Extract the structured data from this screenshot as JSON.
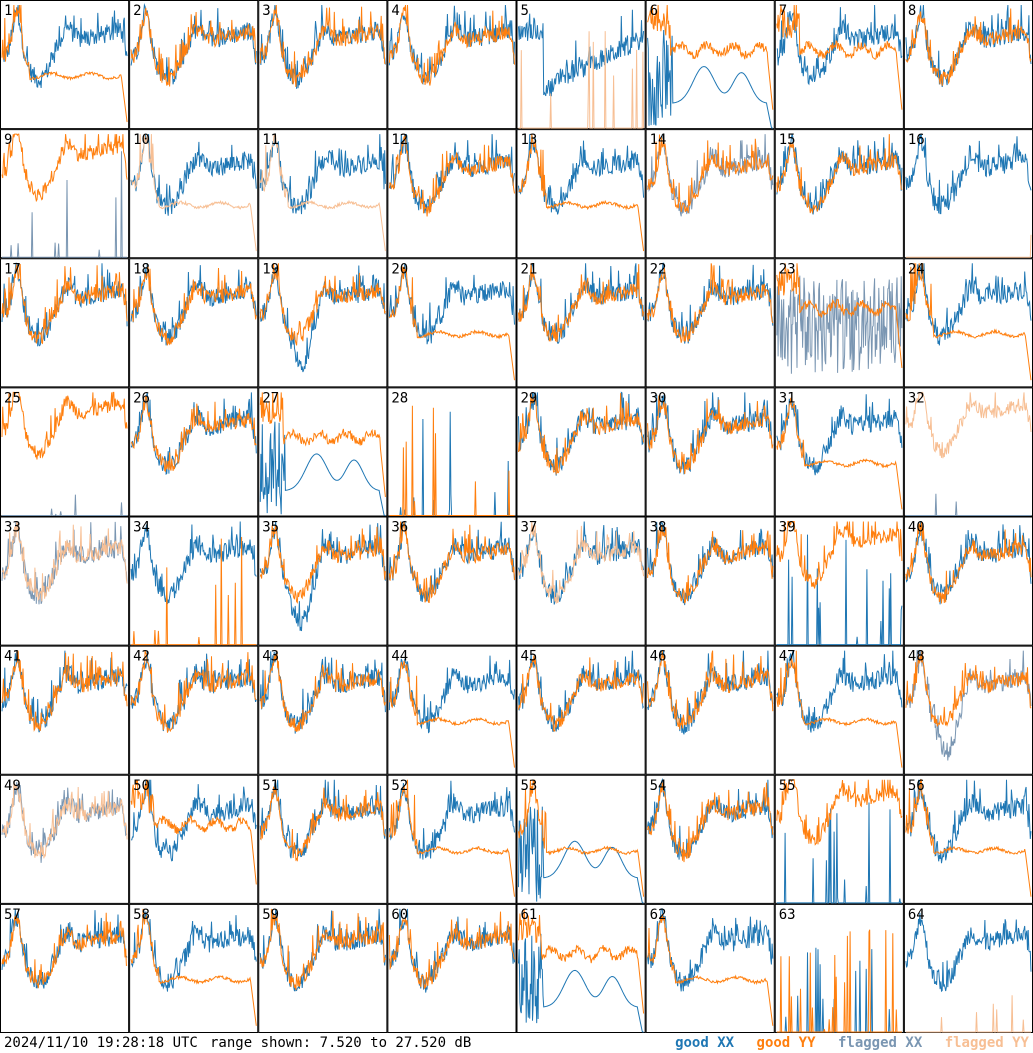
{
  "timestamp": "2024/11/10 19:28:18 UTC",
  "range_text": "range shown: 7.520 to 27.520 dB",
  "legend": [
    {
      "key": "good_xx",
      "label": "good XX",
      "color": "#1f77b4"
    },
    {
      "key": "good_yy",
      "label": "good YY",
      "color": "#ff7f0e"
    },
    {
      "key": "flagged_xx",
      "label": "flagged XX",
      "color": "#7a96b2"
    },
    {
      "key": "flagged_yy",
      "label": "flagged YY",
      "color": "#f7bf94"
    }
  ],
  "chart_data": {
    "type": "line",
    "grid": {
      "rows": 8,
      "cols": 8
    },
    "ylim": [
      7.52,
      27.52
    ],
    "y_unit": "dB",
    "panels": [
      {
        "id": 1,
        "xx": "good",
        "yy": "good",
        "xx_shape": "normal",
        "yy_shape": "plateau"
      },
      {
        "id": 2,
        "xx": "good",
        "yy": "good",
        "xx_shape": "normal",
        "yy_shape": "normal"
      },
      {
        "id": 3,
        "xx": "good",
        "yy": "good",
        "xx_shape": "normal",
        "yy_shape": "normal"
      },
      {
        "id": 4,
        "xx": "good",
        "yy": "good",
        "xx_shape": "normal",
        "yy_shape": "normal"
      },
      {
        "id": 5,
        "xx": "good",
        "yy": "flagged",
        "xx_shape": "dip",
        "yy_shape": "spikes"
      },
      {
        "id": 6,
        "xx": "good",
        "yy": "good",
        "xx_shape": "hump",
        "yy_shape": "plateau_high"
      },
      {
        "id": 7,
        "xx": "good",
        "yy": "good",
        "xx_shape": "normal",
        "yy_shape": "plateau_high"
      },
      {
        "id": 8,
        "xx": "good",
        "yy": "good",
        "xx_shape": "normal",
        "yy_shape": "normal"
      },
      {
        "id": 9,
        "xx": "flagged",
        "yy": "good",
        "xx_shape": "spikes",
        "yy_shape": "normal_high"
      },
      {
        "id": 10,
        "xx": "good",
        "yy": "flagged",
        "xx_shape": "normal",
        "yy_shape": "plateau"
      },
      {
        "id": 11,
        "xx": "good",
        "yy": "flagged",
        "xx_shape": "normal",
        "yy_shape": "plateau"
      },
      {
        "id": 12,
        "xx": "good",
        "yy": "good",
        "xx_shape": "normal",
        "yy_shape": "normal"
      },
      {
        "id": 13,
        "xx": "good",
        "yy": "good",
        "xx_shape": "normal",
        "yy_shape": "plateau"
      },
      {
        "id": 14,
        "xx": "flagged",
        "yy": "good",
        "xx_shape": "normal",
        "yy_shape": "normal"
      },
      {
        "id": 15,
        "xx": "good",
        "yy": "good",
        "xx_shape": "normal",
        "yy_shape": "normal"
      },
      {
        "id": 16,
        "xx": "good",
        "yy": "flagged",
        "xx_shape": "normal",
        "yy_shape": "flat_low"
      },
      {
        "id": 17,
        "xx": "good",
        "yy": "good",
        "xx_shape": "normal",
        "yy_shape": "normal"
      },
      {
        "id": 18,
        "xx": "good",
        "yy": "good",
        "xx_shape": "normal",
        "yy_shape": "normal"
      },
      {
        "id": 19,
        "xx": "good",
        "yy": "good",
        "xx_shape": "deep",
        "yy_shape": "normal"
      },
      {
        "id": 20,
        "xx": "good",
        "yy": "good",
        "xx_shape": "normal",
        "yy_shape": "plateau"
      },
      {
        "id": 21,
        "xx": "good",
        "yy": "good",
        "xx_shape": "normal",
        "yy_shape": "normal"
      },
      {
        "id": 22,
        "xx": "good",
        "yy": "good",
        "xx_shape": "normal",
        "yy_shape": "normal"
      },
      {
        "id": 23,
        "xx": "flagged",
        "yy": "good",
        "xx_shape": "noise",
        "yy_shape": "plateau_high"
      },
      {
        "id": 24,
        "xx": "good",
        "yy": "good",
        "xx_shape": "normal",
        "yy_shape": "plateau"
      },
      {
        "id": 25,
        "xx": "flagged",
        "yy": "good",
        "xx_shape": "flat_low",
        "yy_shape": "normal_high"
      },
      {
        "id": 26,
        "xx": "good",
        "yy": "good",
        "xx_shape": "normal",
        "yy_shape": "normal"
      },
      {
        "id": 27,
        "xx": "good",
        "yy": "good",
        "xx_shape": "hump",
        "yy_shape": "plateau_high"
      },
      {
        "id": 28,
        "xx": "good",
        "yy": "good",
        "xx_shape": "spikes",
        "yy_shape": "spikes"
      },
      {
        "id": 29,
        "xx": "good",
        "yy": "good",
        "xx_shape": "normal",
        "yy_shape": "normal"
      },
      {
        "id": 30,
        "xx": "good",
        "yy": "good",
        "xx_shape": "normal",
        "yy_shape": "normal"
      },
      {
        "id": 31,
        "xx": "good",
        "yy": "good",
        "xx_shape": "normal",
        "yy_shape": "plateau"
      },
      {
        "id": 32,
        "xx": "flagged",
        "yy": "flagged",
        "xx_shape": "flat_low",
        "yy_shape": "normal_high"
      },
      {
        "id": 33,
        "xx": "flagged",
        "yy": "flagged",
        "xx_shape": "normal",
        "yy_shape": "normal"
      },
      {
        "id": 34,
        "xx": "good",
        "yy": "good",
        "xx_shape": "normal",
        "yy_shape": "spikes"
      },
      {
        "id": 35,
        "xx": "good",
        "yy": "good",
        "xx_shape": "deep",
        "yy_shape": "normal"
      },
      {
        "id": 36,
        "xx": "good",
        "yy": "good",
        "xx_shape": "normal",
        "yy_shape": "normal"
      },
      {
        "id": 37,
        "xx": "good",
        "yy": "flagged",
        "xx_shape": "normal",
        "yy_shape": "normal"
      },
      {
        "id": 38,
        "xx": "good",
        "yy": "good",
        "xx_shape": "normal",
        "yy_shape": "normal"
      },
      {
        "id": 39,
        "xx": "good",
        "yy": "good",
        "xx_shape": "spikes",
        "yy_shape": "normal_high"
      },
      {
        "id": 40,
        "xx": "good",
        "yy": "good",
        "xx_shape": "normal",
        "yy_shape": "normal"
      },
      {
        "id": 41,
        "xx": "good",
        "yy": "good",
        "xx_shape": "normal",
        "yy_shape": "normal"
      },
      {
        "id": 42,
        "xx": "good",
        "yy": "good",
        "xx_shape": "normal",
        "yy_shape": "normal"
      },
      {
        "id": 43,
        "xx": "good",
        "yy": "good",
        "xx_shape": "normal",
        "yy_shape": "normal"
      },
      {
        "id": 44,
        "xx": "good",
        "yy": "good",
        "xx_shape": "normal",
        "yy_shape": "plateau"
      },
      {
        "id": 45,
        "xx": "good",
        "yy": "good",
        "xx_shape": "normal",
        "yy_shape": "normal"
      },
      {
        "id": 46,
        "xx": "good",
        "yy": "good",
        "xx_shape": "normal",
        "yy_shape": "normal"
      },
      {
        "id": 47,
        "xx": "good",
        "yy": "good",
        "xx_shape": "normal",
        "yy_shape": "plateau"
      },
      {
        "id": 48,
        "xx": "flagged",
        "yy": "good",
        "xx_shape": "deep",
        "yy_shape": "normal"
      },
      {
        "id": 49,
        "xx": "flagged",
        "yy": "flagged",
        "xx_shape": "normal",
        "yy_shape": "normal"
      },
      {
        "id": 50,
        "xx": "good",
        "yy": "good",
        "xx_shape": "normal",
        "yy_shape": "plateau_high"
      },
      {
        "id": 51,
        "xx": "good",
        "yy": "good",
        "xx_shape": "normal",
        "yy_shape": "normal"
      },
      {
        "id": 52,
        "xx": "good",
        "yy": "good",
        "xx_shape": "normal",
        "yy_shape": "plateau"
      },
      {
        "id": 53,
        "xx": "good",
        "yy": "good",
        "xx_shape": "hump",
        "yy_shape": "plateau"
      },
      {
        "id": 54,
        "xx": "good",
        "yy": "good",
        "xx_shape": "normal",
        "yy_shape": "normal"
      },
      {
        "id": 55,
        "xx": "good",
        "yy": "good",
        "xx_shape": "spikes",
        "yy_shape": "normal_high"
      },
      {
        "id": 56,
        "xx": "good",
        "yy": "good",
        "xx_shape": "normal",
        "yy_shape": "plateau"
      },
      {
        "id": 57,
        "xx": "good",
        "yy": "good",
        "xx_shape": "normal",
        "yy_shape": "normal"
      },
      {
        "id": 58,
        "xx": "good",
        "yy": "good",
        "xx_shape": "normal",
        "yy_shape": "plateau"
      },
      {
        "id": 59,
        "xx": "good",
        "yy": "good",
        "xx_shape": "normal",
        "yy_shape": "normal"
      },
      {
        "id": 60,
        "xx": "good",
        "yy": "good",
        "xx_shape": "normal",
        "yy_shape": "normal"
      },
      {
        "id": 61,
        "xx": "good",
        "yy": "good",
        "xx_shape": "hump",
        "yy_shape": "plateau_high"
      },
      {
        "id": 62,
        "xx": "good",
        "yy": "good",
        "xx_shape": "normal",
        "yy_shape": "plateau"
      },
      {
        "id": 63,
        "xx": "good",
        "yy": "good",
        "xx_shape": "spikes",
        "yy_shape": "spikes"
      },
      {
        "id": 64,
        "xx": "good",
        "yy": "flagged",
        "xx_shape": "normal",
        "yy_shape": "flat_low"
      }
    ]
  }
}
